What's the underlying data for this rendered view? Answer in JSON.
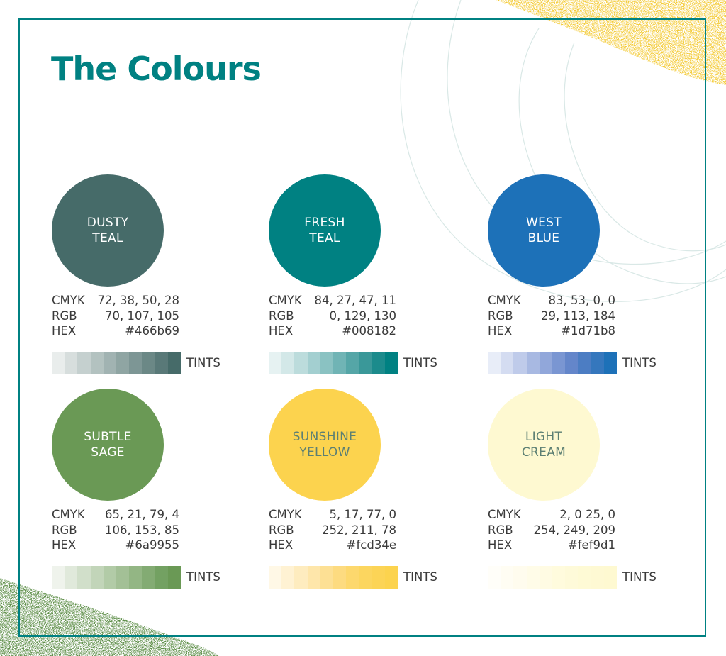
{
  "title": "The Colours",
  "tints_label": "TINTS",
  "spec_labels": {
    "cmyk": "CMYK",
    "rgb": "RGB",
    "hex": "HEX"
  },
  "colours": [
    {
      "name_line1": "DUSTY",
      "name_line2": "TEAL",
      "cmyk": "72, 38, 50, 28",
      "rgb": "70, 107, 105",
      "hex": "#466b69",
      "swatch": "#466b69",
      "text_color": "#ffffff",
      "tints": [
        "#e9edec",
        "#d7dedd",
        "#c5d0cf",
        "#b3c2c0",
        "#a1b3b2",
        "#8fa5a3",
        "#7d9695",
        "#6b8886",
        "#597978",
        "#466b69"
      ]
    },
    {
      "name_line1": "FRESH",
      "name_line2": "TEAL",
      "cmyk": "84, 27, 47, 11",
      "rgb": "0, 129, 130",
      "hex": "#008182",
      "swatch": "#008182",
      "text_color": "#ffffff",
      "tints": [
        "#e6f2f2",
        "#d3e8e8",
        "#bcdcdc",
        "#a3cfd0",
        "#8ac2c2",
        "#70b4b5",
        "#55a6a7",
        "#3a9899",
        "#1c8b8c",
        "#008182"
      ]
    },
    {
      "name_line1": "WEST",
      "name_line2": "BLUE",
      "cmyk": "83, 53, 0, 0",
      "rgb": "29, 113, 184",
      "hex": "#1d71b8",
      "swatch": "#1d71b8",
      "text_color": "#ffffff",
      "tints": [
        "#e8edf8",
        "#d4dcf1",
        "#bfcbea",
        "#a8b9e2",
        "#91a7da",
        "#7a96d2",
        "#6486ca",
        "#4c7dc3",
        "#3577bd",
        "#1d71b8"
      ]
    },
    {
      "name_line1": "SUBTLE",
      "name_line2": "SAGE",
      "cmyk": "65, 21, 79, 4",
      "rgb": "106, 153, 85",
      "hex": "#6a9955",
      "swatch": "#6a9955",
      "text_color": "#ffffff",
      "tints": [
        "#eff3ec",
        "#e0e9db",
        "#d1dfca",
        "#c2d5b9",
        "#b2cba7",
        "#a3c096",
        "#93b684",
        "#83ab73",
        "#73a162",
        "#6a9955"
      ]
    },
    {
      "name_line1": "SUNSHINE",
      "name_line2": "YELLOW",
      "cmyk": "5, 17, 77, 0",
      "rgb": "252, 211, 78",
      "hex": "#fcd34e",
      "swatch": "#fcd34e",
      "text_color": "#5c7f73",
      "tints": [
        "#fff8e6",
        "#fff2d3",
        "#feecbf",
        "#fee6aa",
        "#fde094",
        "#fddb80",
        "#fdd86d",
        "#fcd65f",
        "#fcd456",
        "#fcd34e"
      ]
    },
    {
      "name_line1": "LIGHT",
      "name_line2": "CREAM",
      "cmyk": "2, 0 25, 0",
      "rgb": "254, 249, 209",
      "hex": "#fef9d1",
      "swatch": "#fef9d1",
      "text_color": "#5c7f73",
      "tints": [
        "#fffef9",
        "#fffdf3",
        "#fffcee",
        "#fffce8",
        "#fffbe3",
        "#fffbdd",
        "#fefad9",
        "#fefad5",
        "#fef9d3",
        "#fef9d1"
      ]
    }
  ]
}
